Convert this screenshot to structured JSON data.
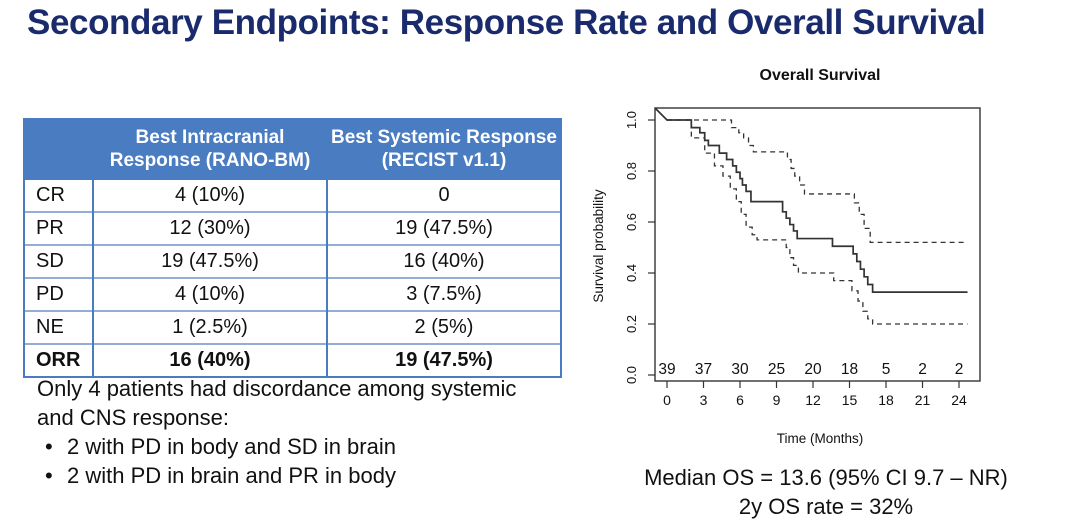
{
  "title": "Secondary Endpoints: Response Rate and Overall Survival",
  "table": {
    "col_headers": [
      "Best Intracranial\nResponse (RANO-BM)",
      "Best Systemic Response\n(RECIST v1.1)"
    ],
    "rows": [
      {
        "label": "CR",
        "intracranial": "4 (10%)",
        "systemic": "0"
      },
      {
        "label": "PR",
        "intracranial": "12 (30%)",
        "systemic": "19 (47.5%)"
      },
      {
        "label": "SD",
        "intracranial": "19 (47.5%)",
        "systemic": "16 (40%)"
      },
      {
        "label": "PD",
        "intracranial": "4 (10%)",
        "systemic": "3 (7.5%)"
      },
      {
        "label": "NE",
        "intracranial": "1 (2.5%)",
        "systemic": "2 (5%)"
      },
      {
        "label": "ORR",
        "intracranial": "16 (40%)",
        "systemic": "19 (47.5%)"
      }
    ]
  },
  "notes": {
    "intro": "Only 4 patients had discordance among systemic and CNS response:",
    "bullets": [
      "2 with PD in body and SD in brain",
      "2 with PD in brain and PR in body"
    ]
  },
  "chart_data": {
    "type": "line",
    "subtype": "kaplan-meier",
    "title": "Overall Survival",
    "xlabel": "Time (Months)",
    "ylabel": "Survival probability",
    "xlim": [
      0,
      24
    ],
    "ylim": [
      0.0,
      1.0
    ],
    "x_ticks": [
      0,
      3,
      6,
      9,
      12,
      15,
      18,
      21,
      24
    ],
    "y_ticks": [
      0.0,
      0.2,
      0.4,
      0.6,
      0.8,
      1.0
    ],
    "grid": false,
    "legend_position": "none",
    "at_risk": {
      "times": [
        0,
        3,
        6,
        9,
        12,
        15,
        18,
        21,
        24
      ],
      "counts": [
        39,
        37,
        30,
        25,
        20,
        18,
        5,
        2,
        2
      ]
    },
    "series": [
      {
        "name": "KM estimate",
        "style": "solid",
        "from_corner": true,
        "data_name": "km-estimate-curve",
        "points": [
          [
            0,
            1
          ],
          [
            2.0,
            0.97
          ],
          [
            2.7,
            0.95
          ],
          [
            3.1,
            0.92
          ],
          [
            3.4,
            0.9
          ],
          [
            4.3,
            0.87
          ],
          [
            4.9,
            0.845
          ],
          [
            5.4,
            0.82
          ],
          [
            5.7,
            0.795
          ],
          [
            6.0,
            0.77
          ],
          [
            6.2,
            0.745
          ],
          [
            6.5,
            0.72
          ],
          [
            6.9,
            0.68
          ],
          [
            9.5,
            0.64
          ],
          [
            9.8,
            0.615
          ],
          [
            10.1,
            0.59
          ],
          [
            10.4,
            0.565
          ],
          [
            10.7,
            0.535
          ],
          [
            13.6,
            0.505
          ],
          [
            15.3,
            0.475
          ],
          [
            15.6,
            0.445
          ],
          [
            15.9,
            0.415
          ],
          [
            16.2,
            0.385
          ],
          [
            16.5,
            0.355
          ],
          [
            16.9,
            0.325
          ],
          [
            24.7,
            0.325
          ]
        ]
      },
      {
        "name": "95% CI upper",
        "style": "dashed",
        "from_corner": false,
        "data_name": "ci-upper-curve",
        "points": [
          [
            0,
            1
          ],
          [
            5.3,
            0.97
          ],
          [
            5.9,
            0.95
          ],
          [
            6.3,
            0.93
          ],
          [
            6.7,
            0.9
          ],
          [
            7.1,
            0.875
          ],
          [
            9.9,
            0.845
          ],
          [
            10.2,
            0.81
          ],
          [
            10.5,
            0.78
          ],
          [
            10.9,
            0.745
          ],
          [
            11.3,
            0.71
          ],
          [
            15.4,
            0.675
          ],
          [
            15.8,
            0.63
          ],
          [
            16.2,
            0.575
          ],
          [
            16.7,
            0.52
          ],
          [
            24.7,
            0.52
          ]
        ]
      },
      {
        "name": "95% CI lower",
        "style": "dashed",
        "from_corner": false,
        "data_name": "ci-lower-curve",
        "points": [
          [
            0,
            1
          ],
          [
            2.0,
            0.93
          ],
          [
            3.1,
            0.87
          ],
          [
            3.9,
            0.82
          ],
          [
            4.6,
            0.78
          ],
          [
            5.2,
            0.73
          ],
          [
            5.7,
            0.68
          ],
          [
            6.1,
            0.63
          ],
          [
            6.5,
            0.58
          ],
          [
            7.0,
            0.55
          ],
          [
            7.4,
            0.53
          ],
          [
            9.8,
            0.5
          ],
          [
            10.1,
            0.46
          ],
          [
            10.4,
            0.43
          ],
          [
            10.8,
            0.4
          ],
          [
            13.7,
            0.37
          ],
          [
            15.2,
            0.33
          ],
          [
            15.7,
            0.29
          ],
          [
            16.1,
            0.25
          ],
          [
            16.5,
            0.22
          ],
          [
            16.9,
            0.2
          ],
          [
            24.7,
            0.2
          ]
        ]
      }
    ],
    "annotations": [
      "Median OS = 13.6 (95% CI 9.7 – NR)",
      "2y OS rate = 32%"
    ]
  },
  "caption": {
    "line1": "Median OS = 13.6 (95% CI 9.7 – NR)",
    "line2": "2y OS rate = 32%"
  },
  "colors": {
    "title_navy": "#1a2b6d",
    "table_header_bg": "#4a7cc2",
    "table_row_line": "#93aed6",
    "chart_ink": "#333333"
  }
}
